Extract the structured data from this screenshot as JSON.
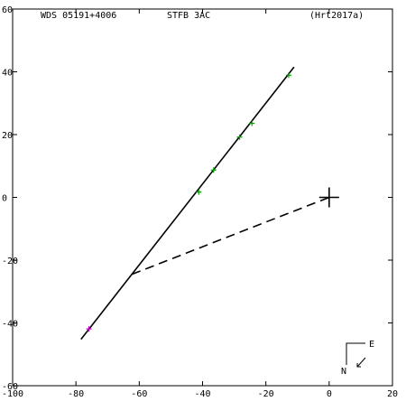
{
  "header": {
    "system": "WDS 05191+4006",
    "discoverer": "STFB  3AC",
    "reference": "(Hrt2017a)"
  },
  "compass": {
    "east_label": "E",
    "north_label": "N"
  },
  "colors": {
    "background": "#ffffff",
    "axes": "#000000",
    "orbit": "#000000",
    "measure_green": "#00a000",
    "measure_magenta": "#c000c0"
  },
  "chart_data": {
    "type": "scatter",
    "xlim": [
      -100,
      20
    ],
    "ylim": [
      -60,
      60
    ],
    "grid": false,
    "x_ticks": [
      -100,
      -80,
      -60,
      -40,
      -20,
      0,
      20
    ],
    "y_ticks": [
      -60,
      -40,
      -20,
      0,
      20,
      40,
      60
    ],
    "x_tick_labels": [
      "-100",
      "-80",
      "-60",
      "-40",
      "-20",
      "0",
      "20"
    ],
    "y_tick_labels": [
      "-60",
      "-40",
      "-20",
      "0",
      "20",
      "40",
      "60"
    ],
    "primary": {
      "x": 0,
      "y": 0
    },
    "orbit_line": [
      [
        -78.4,
        -45.2
      ],
      [
        -11.1,
        41.5
      ]
    ],
    "node_line": [
      [
        -62.3,
        -24.5
      ],
      [
        0,
        0
      ]
    ],
    "series": [
      {
        "marker": "green-plus",
        "points": [
          [
            -12.8,
            38.9
          ],
          [
            -24.4,
            23.6
          ],
          [
            -28.3,
            19.2
          ],
          [
            -36.5,
            8.7
          ],
          [
            -41.2,
            1.7
          ]
        ]
      },
      {
        "marker": "magenta-plus",
        "points": [
          [
            -75.9,
            -41.9
          ]
        ]
      }
    ]
  }
}
